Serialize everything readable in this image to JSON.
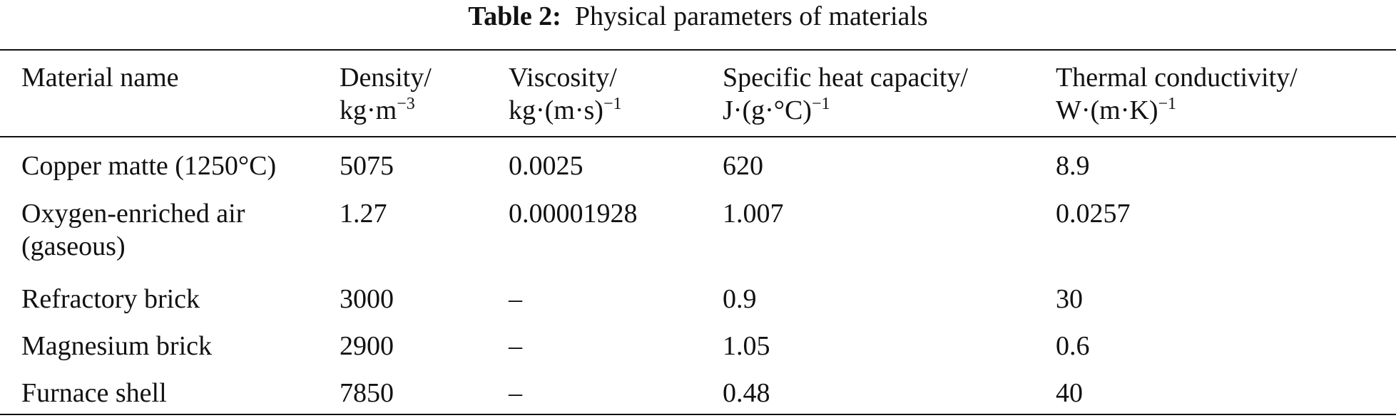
{
  "caption": {
    "label": "Table 2:",
    "text": "Physical parameters of materials"
  },
  "columns": [
    {
      "name": "Material name",
      "unit": "",
      "unit_exp": ""
    },
    {
      "name": "Density/",
      "unit": "kg·m",
      "unit_exp": "−3"
    },
    {
      "name": "Viscosity/",
      "unit": "kg·(m·s)",
      "unit_exp": "−1"
    },
    {
      "name": "Specific heat capacity/",
      "unit": "J·(g·°C)",
      "unit_exp": "−1"
    },
    {
      "name": "Thermal conductivity/",
      "unit": "W·(m·K)",
      "unit_exp": "−1"
    }
  ],
  "rows": [
    {
      "material": "Copper matte (1250°C)",
      "material_line2": "",
      "density": "5075",
      "viscosity": "0.0025",
      "specific_heat": "620",
      "conductivity": "8.9"
    },
    {
      "material": "Oxygen-enriched air",
      "material_line2": "(gaseous)",
      "density": "1.27",
      "viscosity": "0.00001928",
      "specific_heat": "1.007",
      "conductivity": "0.0257"
    },
    {
      "material": "Refractory brick",
      "material_line2": "",
      "density": "3000",
      "viscosity": "–",
      "specific_heat": "0.9",
      "conductivity": "30"
    },
    {
      "material": "Magnesium brick",
      "material_line2": "",
      "density": "2900",
      "viscosity": "–",
      "specific_heat": "1.05",
      "conductivity": "0.6"
    },
    {
      "material": "Furnace shell",
      "material_line2": "",
      "density": "7850",
      "viscosity": "–",
      "specific_heat": "0.48",
      "conductivity": "40"
    }
  ]
}
